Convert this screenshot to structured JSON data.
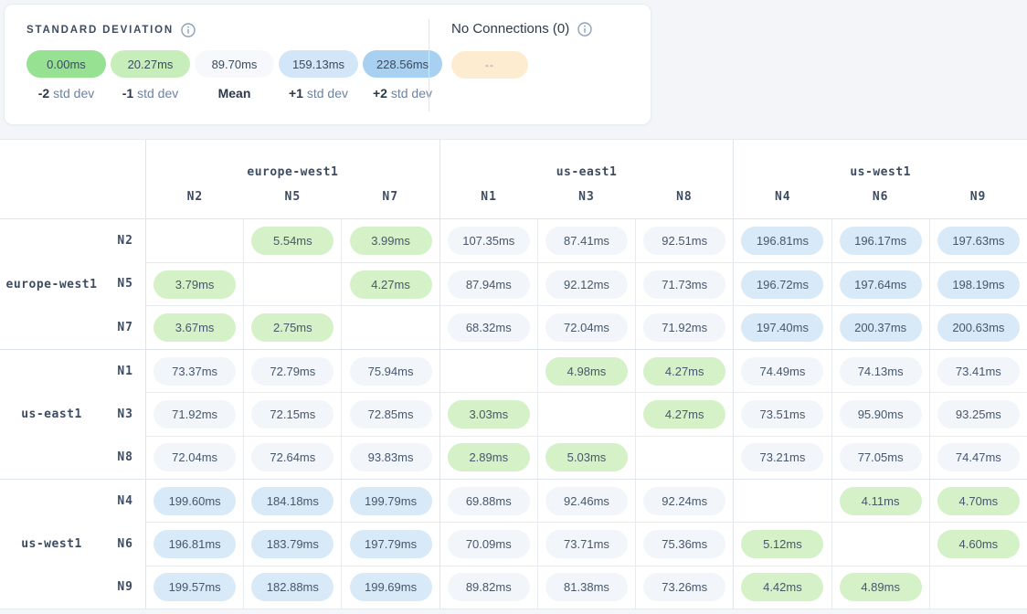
{
  "colors": {
    "legend_minus2": "#97e192",
    "legend_minus1": "#c7eeba",
    "legend_mean": "#f6f8fc",
    "legend_plus1": "#d2e6f7",
    "legend_plus2": "#a8d0f1",
    "cell_green": "#d5f1c8",
    "cell_grey": "#f2f5f9",
    "cell_blue": "#d8e9f8",
    "no_connection_pill": "#fdecd0"
  },
  "legend": {
    "title": "STANDARD DEVIATION",
    "items": [
      {
        "value": "0.00ms",
        "label_bold": "-2",
        "label_rest": " std dev",
        "color": "#97e192"
      },
      {
        "value": "20.27ms",
        "label_bold": "-1",
        "label_rest": " std dev",
        "color": "#c7eeba"
      },
      {
        "value": "89.70ms",
        "label_bold": "Mean",
        "label_rest": "",
        "color": "#f6f8fc"
      },
      {
        "value": "159.13ms",
        "label_bold": "+1",
        "label_rest": " std dev",
        "color": "#d2e6f7"
      },
      {
        "value": "228.56ms",
        "label_bold": "+2",
        "label_rest": " std dev",
        "color": "#a8d0f1"
      }
    ]
  },
  "no_connections": {
    "title": "No Connections (0)",
    "pill": "--"
  },
  "matrix": {
    "col_groups": [
      {
        "region": "europe-west1",
        "nodes": [
          "N2",
          "N5",
          "N7"
        ]
      },
      {
        "region": "us-east1",
        "nodes": [
          "N1",
          "N3",
          "N8"
        ]
      },
      {
        "region": "us-west1",
        "nodes": [
          "N4",
          "N6",
          "N9"
        ]
      }
    ],
    "row_groups": [
      {
        "region": "europe-west1",
        "nodes": [
          "N2",
          "N5",
          "N7"
        ]
      },
      {
        "region": "us-east1",
        "nodes": [
          "N1",
          "N3",
          "N8"
        ]
      },
      {
        "region": "us-west1",
        "nodes": [
          "N4",
          "N6",
          "N9"
        ]
      }
    ],
    "cells": [
      [
        {
          "v": "",
          "c": ""
        },
        {
          "v": "5.54ms",
          "c": "g"
        },
        {
          "v": "3.99ms",
          "c": "g"
        },
        {
          "v": "107.35ms",
          "c": "n"
        },
        {
          "v": "87.41ms",
          "c": "n"
        },
        {
          "v": "92.51ms",
          "c": "n"
        },
        {
          "v": "196.81ms",
          "c": "b"
        },
        {
          "v": "196.17ms",
          "c": "b"
        },
        {
          "v": "197.63ms",
          "c": "b"
        }
      ],
      [
        {
          "v": "3.79ms",
          "c": "g"
        },
        {
          "v": "",
          "c": ""
        },
        {
          "v": "4.27ms",
          "c": "g"
        },
        {
          "v": "87.94ms",
          "c": "n"
        },
        {
          "v": "92.12ms",
          "c": "n"
        },
        {
          "v": "71.73ms",
          "c": "n"
        },
        {
          "v": "196.72ms",
          "c": "b"
        },
        {
          "v": "197.64ms",
          "c": "b"
        },
        {
          "v": "198.19ms",
          "c": "b"
        }
      ],
      [
        {
          "v": "3.67ms",
          "c": "g"
        },
        {
          "v": "2.75ms",
          "c": "g"
        },
        {
          "v": "",
          "c": ""
        },
        {
          "v": "68.32ms",
          "c": "n"
        },
        {
          "v": "72.04ms",
          "c": "n"
        },
        {
          "v": "71.92ms",
          "c": "n"
        },
        {
          "v": "197.40ms",
          "c": "b"
        },
        {
          "v": "200.37ms",
          "c": "b"
        },
        {
          "v": "200.63ms",
          "c": "b"
        }
      ],
      [
        {
          "v": "73.37ms",
          "c": "n"
        },
        {
          "v": "72.79ms",
          "c": "n"
        },
        {
          "v": "75.94ms",
          "c": "n"
        },
        {
          "v": "",
          "c": ""
        },
        {
          "v": "4.98ms",
          "c": "g"
        },
        {
          "v": "4.27ms",
          "c": "g"
        },
        {
          "v": "74.49ms",
          "c": "n"
        },
        {
          "v": "74.13ms",
          "c": "n"
        },
        {
          "v": "73.41ms",
          "c": "n"
        }
      ],
      [
        {
          "v": "71.92ms",
          "c": "n"
        },
        {
          "v": "72.15ms",
          "c": "n"
        },
        {
          "v": "72.85ms",
          "c": "n"
        },
        {
          "v": "3.03ms",
          "c": "g"
        },
        {
          "v": "",
          "c": ""
        },
        {
          "v": "4.27ms",
          "c": "g"
        },
        {
          "v": "73.51ms",
          "c": "n"
        },
        {
          "v": "95.90ms",
          "c": "n"
        },
        {
          "v": "93.25ms",
          "c": "n"
        }
      ],
      [
        {
          "v": "72.04ms",
          "c": "n"
        },
        {
          "v": "72.64ms",
          "c": "n"
        },
        {
          "v": "93.83ms",
          "c": "n"
        },
        {
          "v": "2.89ms",
          "c": "g"
        },
        {
          "v": "5.03ms",
          "c": "g"
        },
        {
          "v": "",
          "c": ""
        },
        {
          "v": "73.21ms",
          "c": "n"
        },
        {
          "v": "77.05ms",
          "c": "n"
        },
        {
          "v": "74.47ms",
          "c": "n"
        }
      ],
      [
        {
          "v": "199.60ms",
          "c": "b"
        },
        {
          "v": "184.18ms",
          "c": "b"
        },
        {
          "v": "199.79ms",
          "c": "b"
        },
        {
          "v": "69.88ms",
          "c": "n"
        },
        {
          "v": "92.46ms",
          "c": "n"
        },
        {
          "v": "92.24ms",
          "c": "n"
        },
        {
          "v": "",
          "c": ""
        },
        {
          "v": "4.11ms",
          "c": "g"
        },
        {
          "v": "4.70ms",
          "c": "g"
        }
      ],
      [
        {
          "v": "196.81ms",
          "c": "b"
        },
        {
          "v": "183.79ms",
          "c": "b"
        },
        {
          "v": "197.79ms",
          "c": "b"
        },
        {
          "v": "70.09ms",
          "c": "n"
        },
        {
          "v": "73.71ms",
          "c": "n"
        },
        {
          "v": "75.36ms",
          "c": "n"
        },
        {
          "v": "5.12ms",
          "c": "g"
        },
        {
          "v": "",
          "c": ""
        },
        {
          "v": "4.60ms",
          "c": "g"
        }
      ],
      [
        {
          "v": "199.57ms",
          "c": "b"
        },
        {
          "v": "182.88ms",
          "c": "b"
        },
        {
          "v": "199.69ms",
          "c": "b"
        },
        {
          "v": "89.82ms",
          "c": "n"
        },
        {
          "v": "81.38ms",
          "c": "n"
        },
        {
          "v": "73.26ms",
          "c": "n"
        },
        {
          "v": "4.42ms",
          "c": "g"
        },
        {
          "v": "4.89ms",
          "c": "g"
        },
        {
          "v": "",
          "c": ""
        }
      ]
    ]
  }
}
